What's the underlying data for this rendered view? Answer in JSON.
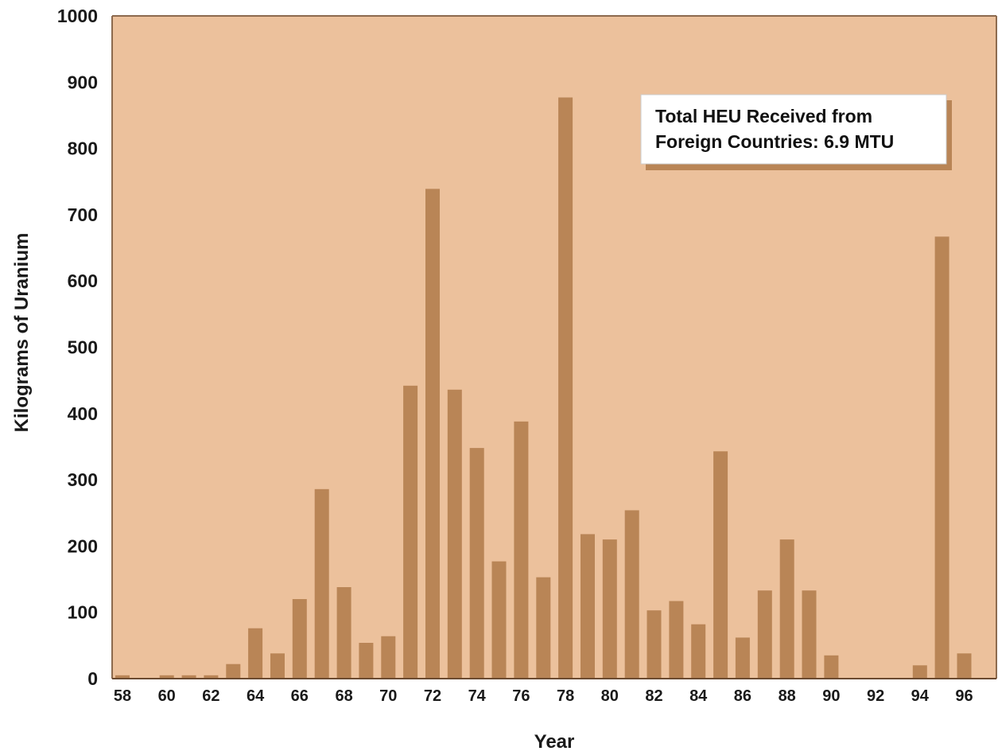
{
  "chart_data": {
    "type": "bar",
    "title": "",
    "xlabel": "Year",
    "ylabel": "Kilograms of Uranium",
    "ylim": [
      0,
      1000
    ],
    "yticks": [
      "0",
      "100",
      "200",
      "300",
      "400",
      "500",
      "600",
      "700",
      "800",
      "900",
      "1000"
    ],
    "categories": [
      "58",
      "59",
      "60",
      "61",
      "62",
      "63",
      "64",
      "65",
      "66",
      "67",
      "68",
      "69",
      "70",
      "71",
      "72",
      "73",
      "74",
      "75",
      "76",
      "77",
      "78",
      "79",
      "80",
      "81",
      "82",
      "83",
      "84",
      "85",
      "86",
      "87",
      "88",
      "89",
      "90",
      "91",
      "92",
      "93",
      "94",
      "95",
      "96"
    ],
    "xtick_labels": [
      "58",
      "60",
      "62",
      "64",
      "66",
      "68",
      "70",
      "72",
      "74",
      "76",
      "78",
      "80",
      "82",
      "84",
      "86",
      "88",
      "90",
      "92",
      "94",
      "96"
    ],
    "values": [
      5,
      0,
      5,
      5,
      5,
      22,
      76,
      38,
      120,
      286,
      138,
      54,
      64,
      442,
      739,
      436,
      348,
      177,
      388,
      153,
      877,
      218,
      210,
      254,
      103,
      117,
      82,
      343,
      62,
      133,
      210,
      133,
      35,
      0,
      0,
      0,
      20,
      667,
      38
    ],
    "annotation": {
      "line1": "Total HEU Received from",
      "line2": "Foreign Countries:  6.9 MTU"
    },
    "colors": {
      "plot_background": "#ecc19c",
      "bar": "#b98556",
      "frame": "#8c6a4e",
      "callout_shadow": "#b98556"
    },
    "grid": false,
    "legend": "none"
  }
}
